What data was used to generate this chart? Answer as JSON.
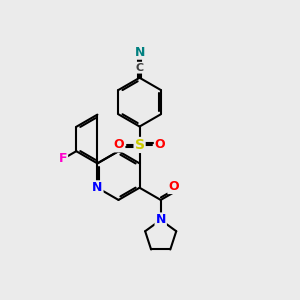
{
  "bg": "#ebebeb",
  "bond_color": "#000000",
  "lw": 1.5,
  "atom_colors": {
    "N_blue": "#0000ff",
    "O_red": "#ff0000",
    "S_yellow": "#cccc00",
    "F_pink": "#ff00cc",
    "N_teal": "#008080"
  },
  "fs": 9,
  "xlim": [
    0,
    10
  ],
  "ylim": [
    0,
    10
  ]
}
